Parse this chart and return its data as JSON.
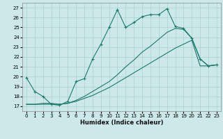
{
  "xlabel": "Humidex (Indice chaleur)",
  "xlim": [
    -0.5,
    23.5
  ],
  "ylim": [
    16.5,
    27.5
  ],
  "yticks": [
    17,
    18,
    19,
    20,
    21,
    22,
    23,
    24,
    25,
    26,
    27
  ],
  "xticks": [
    0,
    1,
    2,
    3,
    4,
    5,
    6,
    7,
    8,
    9,
    10,
    11,
    12,
    13,
    14,
    15,
    16,
    17,
    18,
    19,
    20,
    21,
    22,
    23
  ],
  "background_color": "#cce8e8",
  "line_color": "#1a7a6e",
  "grid_color": "#aacfcf",
  "series1_x": [
    0,
    1,
    2,
    3,
    4,
    5,
    6,
    7,
    8,
    9,
    10,
    11,
    12,
    13,
    14,
    15,
    16,
    17,
    18,
    19,
    20,
    21,
    22,
    23
  ],
  "series1_y": [
    19.9,
    18.5,
    18.0,
    17.2,
    17.1,
    17.5,
    19.5,
    19.8,
    21.8,
    23.3,
    25.0,
    26.8,
    25.0,
    25.5,
    26.1,
    26.3,
    26.3,
    26.9,
    25.1,
    24.9,
    23.9,
    21.8,
    21.1,
    21.2
  ],
  "series2_x": [
    0,
    1,
    2,
    3,
    4,
    5,
    6,
    7,
    8,
    9,
    10,
    11,
    12,
    13,
    14,
    15,
    16,
    17,
    18,
    19,
    20,
    21,
    22,
    23
  ],
  "series2_y": [
    17.2,
    17.2,
    17.2,
    17.2,
    17.2,
    17.3,
    17.5,
    17.8,
    18.1,
    18.5,
    18.9,
    19.4,
    19.9,
    20.4,
    20.9,
    21.4,
    21.9,
    22.4,
    22.9,
    23.3,
    23.7,
    21.1,
    21.1,
    21.2
  ],
  "series3_x": [
    0,
    1,
    2,
    3,
    4,
    5,
    6,
    7,
    8,
    9,
    10,
    11,
    12,
    13,
    14,
    15,
    16,
    17,
    18,
    19,
    20,
    21,
    22,
    23
  ],
  "series3_y": [
    17.2,
    17.2,
    17.3,
    17.3,
    17.2,
    17.3,
    17.6,
    18.0,
    18.5,
    19.0,
    19.5,
    20.2,
    21.0,
    21.7,
    22.5,
    23.1,
    23.8,
    24.5,
    24.9,
    24.8,
    23.9,
    21.8,
    21.1,
    21.2
  ]
}
